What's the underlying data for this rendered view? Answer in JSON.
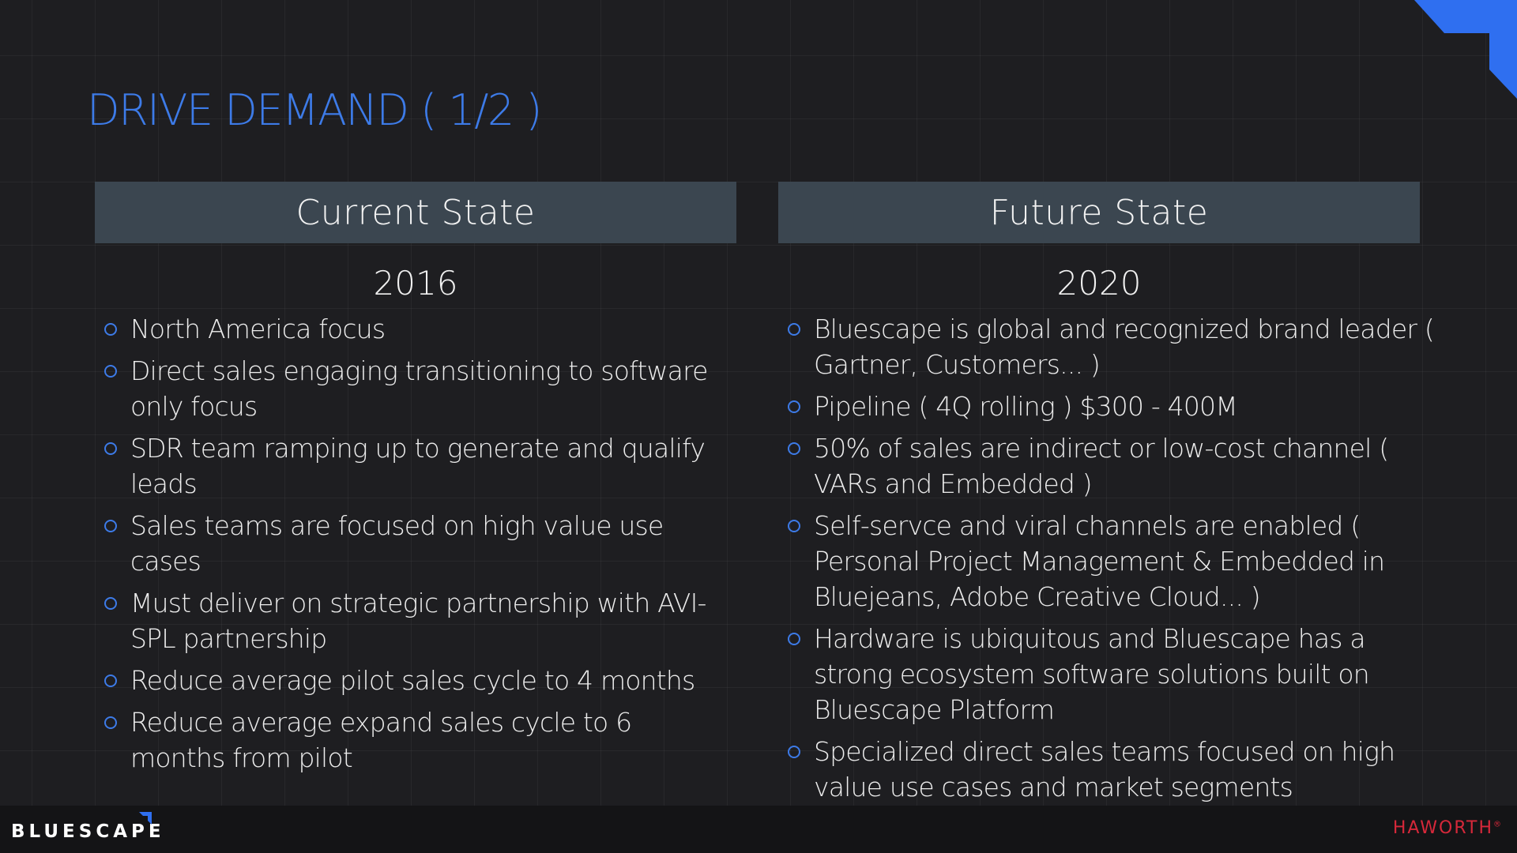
{
  "slide": {
    "title": "DRIVE DEMAND ( 1/2 )",
    "accent_color": "#3d7be8",
    "background_color": "#1e1e21"
  },
  "current": {
    "header": "Current State",
    "year": "2016",
    "bullets": [
      "North America focus",
      "Direct sales engaging transitioning to software only focus",
      "SDR team ramping up to generate and qualify leads",
      "Sales teams are focused on high value use cases",
      "Must deliver on strategic partnership with AVI-SPL partnership",
      "Reduce average pilot sales cycle to 4 months",
      "Reduce average expand sales cycle to 6 months from pilot"
    ]
  },
  "future": {
    "header": "Future State",
    "year": "2020",
    "bullets": [
      "Bluescape is global and recognized brand leader ( Gartner, Customers... )",
      "Pipeline ( 4Q rolling ) $300 - 400M",
      "50% of sales are indirect or low-cost channel ( VARs and Embedded )",
      "Self-servce and viral channels are enabled ( Personal Project Management & Embedded in Bluejeans, Adobe Creative Cloud...  )",
      "Hardware is ubiquitous and Bluescape has a strong ecosystem software solutions built on Bluescape Platform",
      "Specialized direct sales teams focused on high value use cases and market segments"
    ]
  },
  "footer": {
    "brand": "BLUESCAPE",
    "partner": "HAWORTH",
    "partner_mark": "®",
    "partner_color": "#d6283a"
  },
  "icons": {
    "bullet": "hollow-circle",
    "corner": "blue-corner-chevron",
    "brand_accent": "blue-corner-tick"
  }
}
